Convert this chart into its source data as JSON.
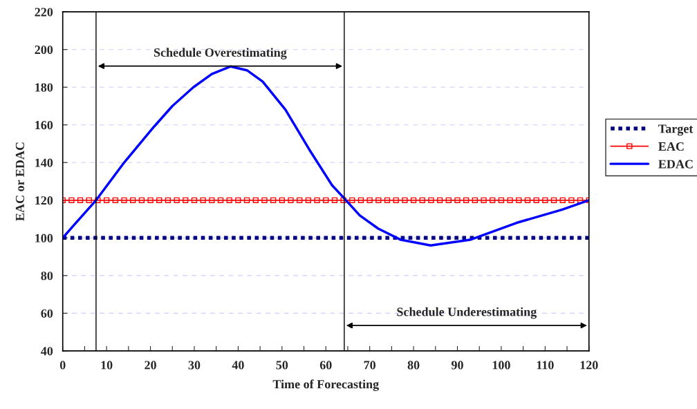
{
  "chart_data": {
    "type": "line",
    "xlabel": "Time of Forecasting",
    "ylabel": "EAC or EDAC",
    "xlim": [
      0,
      120
    ],
    "ylim": [
      40,
      220
    ],
    "xticks": [
      0,
      {
        "value": 5,
        "label": null
      },
      10,
      {
        "value": 15,
        "label": null
      },
      20,
      {
        "value": 25,
        "label": null
      },
      30,
      {
        "value": 35,
        "label": null
      },
      40,
      {
        "value": 45,
        "label": null
      },
      50,
      {
        "value": 55,
        "label": null
      },
      60,
      {
        "value": 65,
        "label": null
      },
      70,
      {
        "value": 75,
        "label": null
      },
      80,
      {
        "value": 85,
        "label": null
      },
      90,
      {
        "value": 95,
        "label": null
      },
      100,
      {
        "value": 105,
        "label": null
      },
      110,
      {
        "value": 115,
        "label": null
      },
      120
    ],
    "yticks": [
      40,
      60,
      80,
      100,
      120,
      140,
      160,
      180,
      200,
      220
    ],
    "grid": "y",
    "legend": "right",
    "series": [
      {
        "name": "Target",
        "color": "#000080",
        "line_style": "dotted",
        "marker": "none",
        "x": [
          0,
          120
        ],
        "values": [
          100,
          100
        ]
      },
      {
        "name": "EAC",
        "color": "#ff0000",
        "line_style": "solid",
        "marker": "square",
        "x": [
          0,
          2,
          4,
          6,
          8,
          10,
          12,
          14,
          16,
          18,
          20,
          22,
          24,
          26,
          28,
          30,
          32,
          34,
          36,
          38,
          40,
          42,
          44,
          46,
          48,
          50,
          52,
          54,
          56,
          58,
          60,
          62,
          64,
          66,
          68,
          70,
          72,
          74,
          76,
          78,
          80,
          82,
          84,
          86,
          88,
          90,
          92,
          94,
          96,
          98,
          100,
          102,
          104,
          106,
          108,
          110,
          112,
          114,
          116,
          118,
          120
        ],
        "values": [
          120,
          120,
          120,
          120,
          120,
          120,
          120,
          120,
          120,
          120,
          120,
          120,
          120,
          120,
          120,
          120,
          120,
          120,
          120,
          120,
          120,
          120,
          120,
          120,
          120,
          120,
          120,
          120,
          120,
          120,
          120,
          120,
          120,
          120,
          120,
          120,
          120,
          120,
          120,
          120,
          120,
          120,
          120,
          120,
          120,
          120,
          120,
          120,
          120,
          120,
          120,
          120,
          120,
          120,
          120,
          120,
          120,
          120,
          120,
          120,
          120
        ]
      },
      {
        "name": "EDAC",
        "color": "#0000ff",
        "line_style": "solid",
        "marker": "none",
        "x": [
          0,
          3,
          7.6,
          14,
          20.8,
          25,
          29.8,
          34,
          38.3,
          42,
          45.6,
          50.8,
          56.2,
          61.4,
          64.2,
          67.7,
          71.9,
          77.1,
          83.9,
          92.9,
          103.5,
          113.9,
          120
        ],
        "values": [
          100,
          108,
          120,
          140,
          159,
          170,
          180,
          187,
          191,
          189,
          183,
          168,
          147,
          128,
          121,
          112,
          105,
          99,
          96,
          99,
          108,
          115,
          120
        ]
      }
    ],
    "ref_lines": [
      {
        "axis": "x",
        "value": 7.6,
        "color": "#000000"
      },
      {
        "axis": "x",
        "value": 64.2,
        "color": "#000000"
      }
    ],
    "annotations": [
      "Schedule Overestimating",
      "Schedule Underestimating"
    ]
  }
}
